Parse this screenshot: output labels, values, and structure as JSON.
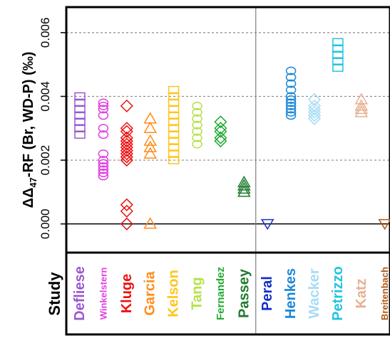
{
  "chart_data": {
    "type": "scatter",
    "title": "",
    "ylabel_prefix": "ΔΔ",
    "ylabel_sub": "47",
    "ylabel_rest": "-RF (Br, WD-P) (‰)",
    "xlabel": "Study",
    "ylim": [
      -0.0009,
      0.0068
    ],
    "yticks": [
      0.0,
      0.002,
      0.004,
      0.006
    ],
    "ytick_labels": [
      "0.000",
      "0.002",
      "0.004",
      "0.006"
    ],
    "grid_y": [
      0.002,
      0.004,
      0.006
    ],
    "zero_line": 0.0,
    "group_divider_after": "Passey",
    "studies": [
      {
        "name": "Defliese",
        "color": "#9b59d0",
        "marker": "square",
        "values": [
          0.004,
          0.0038,
          0.0036,
          0.0034,
          0.0032,
          0.003,
          0.0028
        ]
      },
      {
        "name": "Winkelstern",
        "color": "#e040e0",
        "marker": "circle",
        "values": [
          0.0038,
          0.0037,
          0.0036,
          0.0034,
          0.003,
          0.0028,
          0.0022,
          0.002,
          0.0019,
          0.0018,
          0.0017,
          0.0016,
          0.0015
        ]
      },
      {
        "name": "Kluge",
        "color": "#ee1111",
        "marker": "diamond",
        "values": [
          0.0037,
          0.003,
          0.0029,
          0.0027,
          0.0026,
          0.0025,
          0.0024,
          0.0023,
          0.0022,
          0.0021,
          0.002,
          0.0006,
          0.0004,
          0.0
        ]
      },
      {
        "name": "Garcia",
        "color": "#ff8c1a",
        "marker": "triangle-up",
        "values": [
          0.0033,
          0.003,
          0.0026,
          0.0024,
          0.0022,
          0.0
        ]
      },
      {
        "name": "Kelson",
        "color": "#ffc61a",
        "marker": "square",
        "values": [
          0.0042,
          0.004,
          0.0038,
          0.0036,
          0.0034,
          0.0032,
          0.003,
          0.0028,
          0.0026,
          0.0024,
          0.0022,
          0.002
        ]
      },
      {
        "name": "Tang",
        "color": "#b8e04a",
        "marker": "circle",
        "values": [
          0.0037,
          0.0035,
          0.0033,
          0.0031,
          0.0029,
          0.0027,
          0.0025
        ]
      },
      {
        "name": "Fernandez",
        "color": "#22aa33",
        "marker": "diamond",
        "values": [
          0.0032,
          0.003,
          0.0029,
          0.0027,
          0.0026
        ]
      },
      {
        "name": "Passey",
        "color": "#1f7a2e",
        "marker": "triangle-up",
        "values": [
          0.0013,
          0.0012,
          0.0011,
          0.001
        ]
      },
      {
        "name": "Peral",
        "color": "#1530c8",
        "marker": "triangle-down",
        "values": [
          0.0
        ]
      },
      {
        "name": "Henkes",
        "color": "#1e88d8",
        "marker": "circle",
        "values": [
          0.0048,
          0.0046,
          0.0044,
          0.0042,
          0.004,
          0.0039,
          0.0038,
          0.0037,
          0.0036,
          0.0035,
          0.0034
        ]
      },
      {
        "name": "Wacker",
        "color": "#a8dcf5",
        "marker": "diamond",
        "values": [
          0.0039,
          0.0037,
          0.0036,
          0.0035,
          0.0034,
          0.0033
        ]
      },
      {
        "name": "Petrizzo",
        "color": "#22c4e0",
        "marker": "square",
        "values": [
          0.0057,
          0.0055,
          0.0053,
          0.0051,
          0.0049
        ]
      },
      {
        "name": "Katz",
        "color": "#e8b090",
        "marker": "triangle-up",
        "values": [
          0.0039,
          0.0037,
          0.0036,
          0.0035
        ]
      },
      {
        "name": "Breitenbach",
        "color": "#b05a14",
        "marker": "triangle-down",
        "values": [
          0.0
        ]
      }
    ]
  }
}
